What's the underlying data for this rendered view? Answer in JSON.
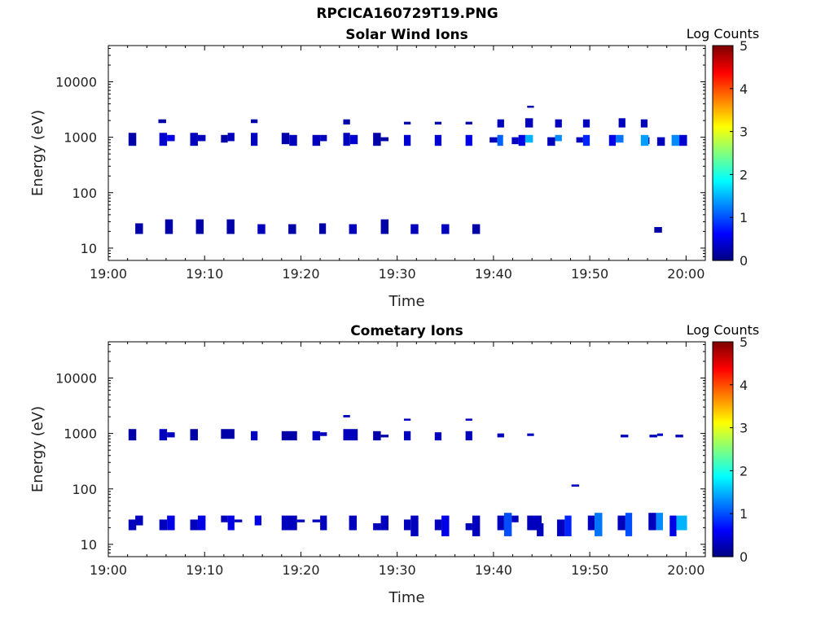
{
  "figure_title": "RPCICA160729T19.PNG",
  "chart_data": [
    {
      "type": "heatmap",
      "title": "Solar Wind Ions",
      "xlabel": "Time",
      "ylabel": "Energy (eV)",
      "x_ticks": [
        "19:00",
        "19:10",
        "19:20",
        "19:30",
        "19:40",
        "19:50",
        "20:00"
      ],
      "x_range_minutes": [
        0,
        62
      ],
      "y_scale": "log",
      "y_ticks": [
        10,
        100,
        1000,
        10000
      ],
      "ylim": [
        6,
        45000
      ],
      "colorbar": {
        "label": "Log Counts",
        "ticks": [
          0,
          1,
          2,
          3,
          4,
          5
        ],
        "range": [
          0,
          5
        ],
        "colormap": "jet"
      },
      "cells_note": "cells: [minute_start, minute_end, energy_low_eV, energy_high_eV, log_counts]",
      "cells": [
        [
          2.1,
          2.9,
          700,
          1200,
          0.2
        ],
        [
          5.3,
          6.1,
          700,
          1200,
          0.4
        ],
        [
          6.1,
          6.9,
          850,
          1100,
          0.5
        ],
        [
          5.2,
          6.0,
          1800,
          2100,
          0.2
        ],
        [
          8.5,
          9.3,
          700,
          1200,
          0.3
        ],
        [
          9.3,
          10.1,
          850,
          1100,
          0.3
        ],
        [
          11.7,
          12.4,
          800,
          1100,
          0.2
        ],
        [
          12.4,
          13.1,
          850,
          1200,
          0.3
        ],
        [
          14.8,
          15.5,
          700,
          1200,
          0.3
        ],
        [
          14.8,
          15.5,
          1800,
          2100,
          0.2
        ],
        [
          18.0,
          18.8,
          750,
          1200,
          0.2
        ],
        [
          18.8,
          19.6,
          700,
          1100,
          0.3
        ],
        [
          21.2,
          22.0,
          700,
          1100,
          0.3
        ],
        [
          22.0,
          22.7,
          850,
          1100,
          0.3
        ],
        [
          24.4,
          25.1,
          700,
          1200,
          0.3
        ],
        [
          25.1,
          25.9,
          750,
          1100,
          0.4
        ],
        [
          24.4,
          25.1,
          1700,
          2100,
          0.2
        ],
        [
          27.5,
          28.3,
          700,
          1200,
          0.2
        ],
        [
          28.3,
          29.1,
          850,
          1000,
          0.2
        ],
        [
          30.7,
          31.4,
          700,
          1100,
          0.4
        ],
        [
          30.7,
          31.4,
          1700,
          1900,
          0.2
        ],
        [
          33.9,
          34.6,
          700,
          1100,
          0.4
        ],
        [
          33.9,
          34.6,
          1700,
          1900,
          0.2
        ],
        [
          37.1,
          37.8,
          700,
          1100,
          0.5
        ],
        [
          37.1,
          37.8,
          1700,
          1900,
          0.2
        ],
        [
          39.6,
          40.4,
          800,
          1000,
          0.3
        ],
        [
          40.4,
          41.0,
          700,
          1100,
          1.1
        ],
        [
          40.4,
          41.1,
          1500,
          2100,
          0.3
        ],
        [
          41.9,
          42.6,
          750,
          1000,
          0.3
        ],
        [
          42.6,
          43.3,
          700,
          1100,
          0.5
        ],
        [
          43.3,
          44.1,
          800,
          1100,
          1.5
        ],
        [
          43.3,
          44.1,
          1500,
          2200,
          0.3
        ],
        [
          43.5,
          44.2,
          3400,
          3700,
          0.2
        ],
        [
          45.6,
          46.4,
          700,
          1000,
          0.3
        ],
        [
          46.4,
          47.1,
          850,
          1100,
          1.3
        ],
        [
          46.4,
          47.1,
          1500,
          2100,
          0.3
        ],
        [
          48.6,
          49.3,
          800,
          1000,
          0.3
        ],
        [
          49.3,
          50.0,
          700,
          1100,
          0.8
        ],
        [
          49.3,
          50.0,
          1500,
          2100,
          0.3
        ],
        [
          52.0,
          52.7,
          700,
          1100,
          0.5
        ],
        [
          52.7,
          53.5,
          800,
          1100,
          1.2
        ],
        [
          53.0,
          53.7,
          1500,
          2200,
          0.3
        ],
        [
          55.5,
          56.2,
          750,
          1000,
          0.3
        ],
        [
          55.3,
          56.1,
          700,
          1100,
          1.4
        ],
        [
          55.3,
          56.0,
          1500,
          2100,
          0.3
        ],
        [
          57.0,
          57.8,
          700,
          1000,
          0.3
        ],
        [
          58.5,
          59.3,
          700,
          1100,
          1.3
        ],
        [
          59.3,
          60.1,
          700,
          1100,
          0.4
        ],
        [
          2.8,
          3.6,
          18,
          28,
          0.2
        ],
        [
          5.9,
          6.7,
          18,
          33,
          0.2
        ],
        [
          9.1,
          9.9,
          18,
          33,
          0.2
        ],
        [
          12.3,
          13.1,
          18,
          33,
          0.2
        ],
        [
          15.5,
          16.3,
          18,
          27,
          0.3
        ],
        [
          18.7,
          19.5,
          18,
          27,
          0.2
        ],
        [
          21.9,
          22.6,
          18,
          28,
          0.2
        ],
        [
          25.0,
          25.8,
          18,
          27,
          0.3
        ],
        [
          28.3,
          29.1,
          18,
          33,
          0.2
        ],
        [
          31.4,
          32.2,
          18,
          27,
          0.3
        ],
        [
          34.6,
          35.4,
          18,
          27,
          0.3
        ],
        [
          37.8,
          38.6,
          18,
          27,
          0.2
        ],
        [
          56.7,
          57.5,
          19,
          24,
          0.2
        ]
      ]
    },
    {
      "type": "heatmap",
      "title": "Cometary Ions",
      "xlabel": "Time",
      "ylabel": "Energy (eV)",
      "x_ticks": [
        "19:00",
        "19:10",
        "19:20",
        "19:30",
        "19:40",
        "19:50",
        "20:00"
      ],
      "x_range_minutes": [
        0,
        62
      ],
      "y_scale": "log",
      "y_ticks": [
        10,
        100,
        1000,
        10000
      ],
      "ylim": [
        6,
        45000
      ],
      "colorbar": {
        "label": "Log Counts",
        "ticks": [
          0,
          1,
          2,
          3,
          4,
          5
        ],
        "range": [
          0,
          5
        ],
        "colormap": "jet"
      },
      "cells_note": "cells: [minute_start, minute_end, energy_low_eV, energy_high_eV, log_counts]",
      "cells": [
        [
          2.1,
          2.9,
          750,
          1200,
          0.2
        ],
        [
          5.3,
          6.1,
          750,
          1200,
          0.3
        ],
        [
          6.1,
          6.9,
          850,
          1050,
          0.3
        ],
        [
          8.5,
          9.3,
          750,
          1200,
          0.2
        ],
        [
          11.7,
          13.1,
          800,
          1200,
          0.2
        ],
        [
          14.8,
          15.5,
          750,
          1100,
          0.3
        ],
        [
          18.0,
          19.6,
          750,
          1100,
          0.2
        ],
        [
          21.2,
          22.0,
          750,
          1100,
          0.3
        ],
        [
          22.0,
          22.7,
          900,
          1050,
          0.3
        ],
        [
          24.4,
          25.9,
          750,
          1200,
          0.3
        ],
        [
          24.4,
          25.1,
          1950,
          2150,
          0.3
        ],
        [
          27.5,
          28.3,
          750,
          1100,
          0.2
        ],
        [
          28.3,
          29.1,
          850,
          950,
          0.2
        ],
        [
          30.7,
          31.4,
          750,
          1100,
          0.3
        ],
        [
          30.7,
          31.4,
          1700,
          1850,
          0.3
        ],
        [
          33.9,
          34.6,
          750,
          1050,
          0.3
        ],
        [
          37.1,
          37.8,
          750,
          1100,
          0.3
        ],
        [
          37.1,
          37.8,
          1700,
          1850,
          0.3
        ],
        [
          40.4,
          41.1,
          850,
          1000,
          0.3
        ],
        [
          43.5,
          44.2,
          900,
          1000,
          0.3
        ],
        [
          48.1,
          48.9,
          110,
          120,
          0.3
        ],
        [
          53.2,
          54.0,
          850,
          950,
          0.3
        ],
        [
          56.2,
          57.0,
          850,
          950,
          0.3
        ],
        [
          57.0,
          57.6,
          900,
          1000,
          0.3
        ],
        [
          58.9,
          59.7,
          850,
          950,
          0.3
        ],
        [
          2.1,
          2.9,
          18,
          28,
          0.3
        ],
        [
          2.8,
          3.6,
          22,
          33,
          0.3
        ],
        [
          5.3,
          6.1,
          18,
          28,
          0.3
        ],
        [
          6.1,
          6.9,
          18,
          33,
          0.5
        ],
        [
          8.5,
          9.3,
          18,
          28,
          0.3
        ],
        [
          9.3,
          10.1,
          18,
          33,
          0.5
        ],
        [
          11.7,
          12.4,
          25,
          33,
          0.3
        ],
        [
          12.4,
          13.1,
          18,
          33,
          0.5
        ],
        [
          13.1,
          13.9,
          25,
          28,
          0.3
        ],
        [
          15.2,
          15.9,
          22,
          33,
          0.5
        ],
        [
          18.0,
          19.6,
          18,
          33,
          0.3
        ],
        [
          19.6,
          20.4,
          25,
          28,
          0.3
        ],
        [
          21.2,
          22.0,
          25,
          28,
          0.3
        ],
        [
          22.0,
          22.7,
          18,
          33,
          0.3
        ],
        [
          25.0,
          25.8,
          18,
          33,
          0.3
        ],
        [
          27.5,
          28.3,
          18,
          24,
          0.3
        ],
        [
          28.3,
          29.1,
          18,
          33,
          0.3
        ],
        [
          30.7,
          31.4,
          18,
          28,
          0.3
        ],
        [
          31.4,
          32.2,
          14,
          33,
          0.3
        ],
        [
          33.9,
          34.6,
          18,
          28,
          0.3
        ],
        [
          34.6,
          35.4,
          14,
          33,
          0.5
        ],
        [
          37.1,
          37.8,
          18,
          24,
          0.3
        ],
        [
          37.8,
          38.6,
          14,
          33,
          0.3
        ],
        [
          40.4,
          41.1,
          18,
          33,
          0.3
        ],
        [
          41.1,
          41.9,
          14,
          37,
          1.0
        ],
        [
          41.9,
          42.6,
          25,
          33,
          0.3
        ],
        [
          43.5,
          45.0,
          18,
          33,
          0.3
        ],
        [
          44.5,
          45.2,
          14,
          24,
          0.3
        ],
        [
          46.6,
          47.4,
          14,
          28,
          0.3
        ],
        [
          47.4,
          48.1,
          14,
          33,
          0.8
        ],
        [
          49.8,
          50.5,
          18,
          33,
          0.3
        ],
        [
          50.5,
          51.3,
          14,
          37,
          1.2
        ],
        [
          52.9,
          53.7,
          18,
          33,
          0.3
        ],
        [
          53.7,
          54.4,
          14,
          37,
          1.0
        ],
        [
          56.1,
          56.9,
          18,
          37,
          0.3
        ],
        [
          56.9,
          57.6,
          18,
          37,
          1.3
        ],
        [
          58.3,
          59.0,
          14,
          33,
          0.5
        ],
        [
          59.0,
          60.1,
          18,
          33,
          1.5
        ]
      ]
    }
  ]
}
